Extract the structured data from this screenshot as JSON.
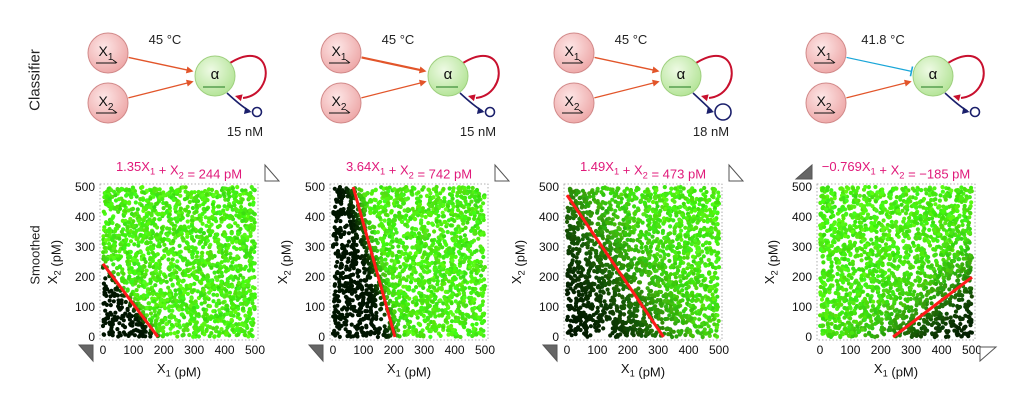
{
  "row_labels": {
    "classifier": "Classifier",
    "smoothed": "Smoothed"
  },
  "colors": {
    "node_input_fill": "#f0b8b8",
    "node_input_stroke": "#d28a8a",
    "node_alpha_fill": "#c9eeb0",
    "node_alpha_stroke": "#9fd07f",
    "activation_arrow": "#e2552a",
    "inhibition_arrow": "#1aa6d8",
    "feedback_arc": "#c8102e",
    "drain": "#1a1f6b",
    "equation": "#e0197a",
    "boundary": "#ff1a1a",
    "point_high": "#4dff10",
    "point_low": "#000000"
  },
  "circuits": [
    {
      "temperature": "45 °C",
      "concentration": "15 nM",
      "inputs": [
        {
          "name": "X",
          "sub": "1",
          "connection": "activate",
          "weight": 1.35
        },
        {
          "name": "X",
          "sub": "2",
          "connection": "activate",
          "weight": 1.0
        }
      ],
      "output": "α",
      "drain_size": "small"
    },
    {
      "temperature": "45 °C",
      "concentration": "15 nM",
      "inputs": [
        {
          "name": "X",
          "sub": "1",
          "connection": "activate",
          "weight": 3.64
        },
        {
          "name": "X",
          "sub": "2",
          "connection": "activate",
          "weight": 1.0
        }
      ],
      "output": "α",
      "drain_size": "small"
    },
    {
      "temperature": "45 °C",
      "concentration": "18 nM",
      "inputs": [
        {
          "name": "X",
          "sub": "1",
          "connection": "activate",
          "weight": 1.49
        },
        {
          "name": "X",
          "sub": "2",
          "connection": "activate",
          "weight": 1.0
        }
      ],
      "output": "α",
      "drain_size": "large"
    },
    {
      "temperature": "41.8 °C",
      "concentration": "",
      "inputs": [
        {
          "name": "X",
          "sub": "1",
          "connection": "inhibit",
          "weight": -0.769
        },
        {
          "name": "X",
          "sub": "2",
          "connection": "activate",
          "weight": 1.0
        }
      ],
      "output": "α",
      "drain_size": "small"
    }
  ],
  "chart_data": [
    {
      "type": "scatter",
      "title": "1.35X1 + X2 = 244 pM",
      "equation_parts": [
        {
          "t": "1.35"
        },
        {
          "t": "X",
          "s": "1"
        },
        {
          "t": " + "
        },
        {
          "t": "X",
          "s": "2"
        },
        {
          "t": " = 244 pM"
        }
      ],
      "xlabel": "X1 (pM)",
      "ylabel": "X2 (pM)",
      "xlim": [
        0,
        500
      ],
      "ylim": [
        0,
        500
      ],
      "xticks": [
        0,
        100,
        200,
        300,
        400,
        500
      ],
      "yticks": [
        0,
        100,
        200,
        300,
        400,
        500
      ],
      "decision_boundary": {
        "a": 1.35,
        "b": 1,
        "c": 244
      },
      "transition_width": 10,
      "markers": [
        "bottom-left-filled",
        "top-right-open"
      ],
      "n_points": 2000
    },
    {
      "type": "scatter",
      "title": "3.64X1 + X2 = 742 pM",
      "equation_parts": [
        {
          "t": "3.64"
        },
        {
          "t": "X",
          "s": "1"
        },
        {
          "t": " + "
        },
        {
          "t": "X",
          "s": "2"
        },
        {
          "t": " = 742 pM"
        }
      ],
      "xlabel": "X1 (pM)",
      "ylabel": "X2 (pM)",
      "xlim": [
        0,
        500
      ],
      "ylim": [
        0,
        500
      ],
      "xticks": [
        0,
        100,
        200,
        300,
        400,
        500
      ],
      "yticks": [
        0,
        100,
        200,
        300,
        400,
        500
      ],
      "decision_boundary": {
        "a": 3.64,
        "b": 1,
        "c": 742
      },
      "transition_width": 40,
      "markers": [
        "bottom-left-filled",
        "top-right-open"
      ],
      "n_points": 2000
    },
    {
      "type": "scatter",
      "title": "1.49X1 + X2 = 473 pM",
      "equation_parts": [
        {
          "t": "1.49"
        },
        {
          "t": "X",
          "s": "1"
        },
        {
          "t": " + "
        },
        {
          "t": "X",
          "s": "2"
        },
        {
          "t": " = 473 pM"
        }
      ],
      "xlabel": "X1 (pM)",
      "ylabel": "X2 (pM)",
      "xlim": [
        0,
        500
      ],
      "ylim": [
        0,
        500
      ],
      "xticks": [
        0,
        100,
        200,
        300,
        400,
        500
      ],
      "yticks": [
        0,
        100,
        200,
        300,
        400,
        500
      ],
      "decision_boundary": {
        "a": 1.49,
        "b": 1,
        "c": 473
      },
      "transition_width": 120,
      "markers": [
        "bottom-left-filled",
        "top-right-open"
      ],
      "n_points": 2000
    },
    {
      "type": "scatter",
      "title": "−0.769X1 + X2 = −185 pM",
      "equation_parts": [
        {
          "t": "−0.769"
        },
        {
          "t": "X",
          "s": "1"
        },
        {
          "t": " + "
        },
        {
          "t": "X",
          "s": "2"
        },
        {
          "t": " = −185 pM"
        }
      ],
      "xlabel": "X1 (pM)",
      "ylabel": "X2 (pM)",
      "xlim": [
        0,
        500
      ],
      "ylim": [
        0,
        500
      ],
      "xticks": [
        0,
        100,
        200,
        300,
        400,
        500
      ],
      "yticks": [
        0,
        100,
        200,
        300,
        400,
        500
      ],
      "decision_boundary": {
        "a": -0.769,
        "b": 1,
        "c": -185
      },
      "transition_width": 60,
      "markers": [
        "top-left-filled",
        "bottom-right-open"
      ],
      "n_points": 2000
    }
  ]
}
